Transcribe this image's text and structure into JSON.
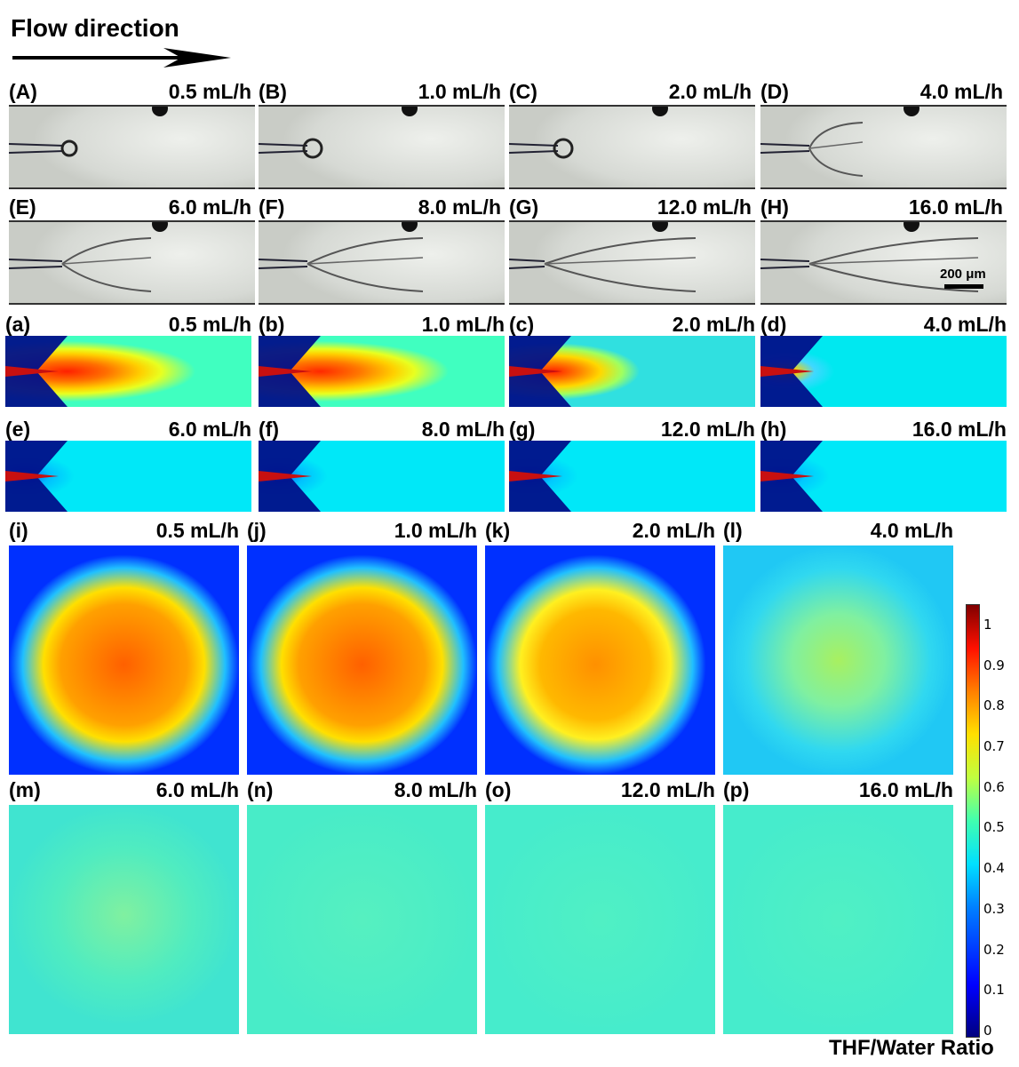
{
  "header": {
    "title": "Flow direction"
  },
  "micro_panels": [
    {
      "letter": "(A)",
      "rate": "0.5 mL/h"
    },
    {
      "letter": "(B)",
      "rate": "1.0 mL/h"
    },
    {
      "letter": "(C)",
      "rate": "2.0 mL/h"
    },
    {
      "letter": "(D)",
      "rate": "4.0 mL/h"
    },
    {
      "letter": "(E)",
      "rate": "6.0 mL/h"
    },
    {
      "letter": "(F)",
      "rate": "8.0 mL/h"
    },
    {
      "letter": "(G)",
      "rate": "12.0 mL/h"
    },
    {
      "letter": "(H)",
      "rate": "16.0 mL/h"
    }
  ],
  "scale_bar": {
    "label": "200 μm"
  },
  "sim_panels": [
    {
      "letter": "(a)",
      "rate": "0.5 mL/h"
    },
    {
      "letter": "(b)",
      "rate": "1.0 mL/h"
    },
    {
      "letter": "(c)",
      "rate": "2.0 mL/h"
    },
    {
      "letter": "(d)",
      "rate": "4.0 mL/h"
    },
    {
      "letter": "(e)",
      "rate": "6.0 mL/h"
    },
    {
      "letter": "(f)",
      "rate": "8.0 mL/h"
    },
    {
      "letter": "(g)",
      "rate": "12.0 mL/h"
    },
    {
      "letter": "(h)",
      "rate": "16.0 mL/h"
    }
  ],
  "square_panels": [
    {
      "letter": "(i)",
      "rate": "0.5 mL/h"
    },
    {
      "letter": "(j)",
      "rate": "1.0 mL/h"
    },
    {
      "letter": "(k)",
      "rate": "2.0 mL/h"
    },
    {
      "letter": "(l)",
      "rate": "4.0 mL/h"
    },
    {
      "letter": "(m)",
      "rate": "6.0 mL/h"
    },
    {
      "letter": "(n)",
      "rate": "8.0 mL/h"
    },
    {
      "letter": "(o)",
      "rate": "12.0 mL/h"
    },
    {
      "letter": "(p)",
      "rate": "16.0 mL/h"
    }
  ],
  "colorbar": {
    "title": "THF/Water Ratio",
    "ticks": [
      "0",
      "0.1",
      "0.2",
      "0.3",
      "0.4",
      "0.5",
      "0.6",
      "0.7",
      "0.8",
      "0.9",
      "1"
    ]
  }
}
